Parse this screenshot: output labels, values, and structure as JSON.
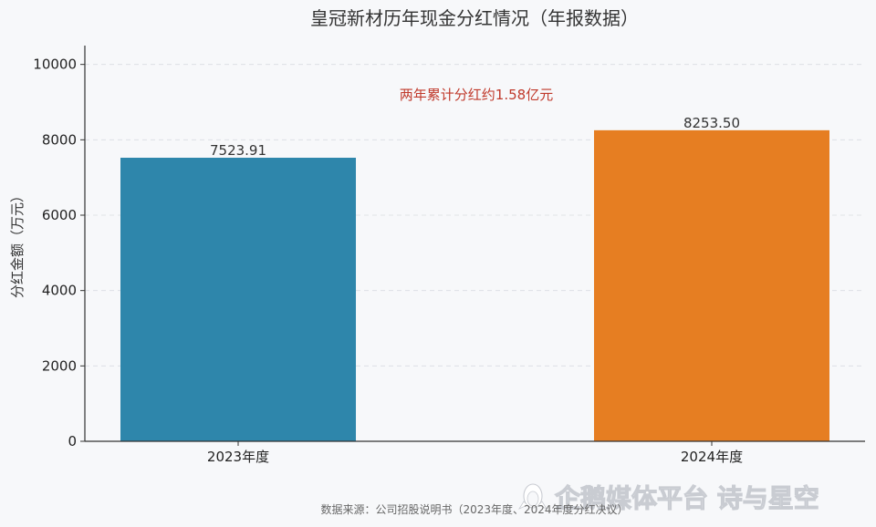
{
  "chart_data": {
    "type": "bar",
    "title": "皇冠新材历年现金分红情况（年报数据）",
    "xlabel": "",
    "ylabel": "分红金额（万元）",
    "categories": [
      "2023年度",
      "2024年度"
    ],
    "values": [
      7523.91,
      8253.5
    ],
    "data_labels": [
      "7523.91",
      "8253.50"
    ],
    "colors": [
      "#2e86ab",
      "#e67e22"
    ],
    "ylim": [
      0,
      10500
    ],
    "yticks": [
      0,
      2000,
      4000,
      6000,
      8000,
      10000
    ],
    "grid": true,
    "annotation": "两年累计分红约1.58亿元",
    "annotation_color": "#c0392b"
  },
  "source_note": "数据来源：公司招股说明书（2023年度、2024年度分红决议）",
  "watermark": {
    "text": "企鹅媒体平台 诗与星空",
    "icon": "penguin-logo-icon"
  }
}
